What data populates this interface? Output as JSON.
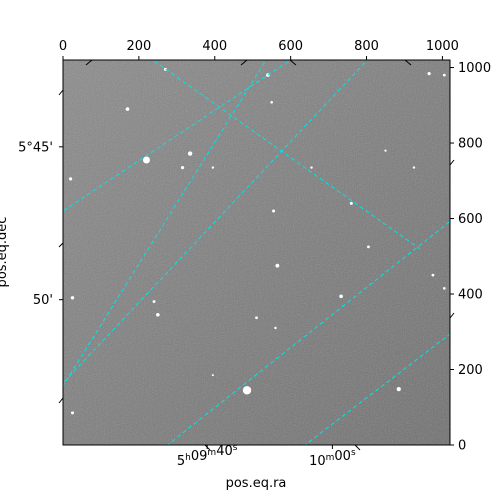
{
  "chart_data": {
    "type": "image",
    "description_free": true,
    "xlabel": "pos.eq.ra",
    "ylabel": "pos.eq.dec",
    "pixel_axes": {
      "x_range": [
        0,
        1020
      ],
      "y_range": [
        0,
        1020
      ],
      "x_ticks": [
        0,
        200,
        400,
        600,
        800,
        1000
      ],
      "y_ticks": [
        0,
        200,
        400,
        600,
        800,
        1000
      ],
      "x_tick_labels": [
        "0",
        "200",
        "400",
        "600",
        "800",
        "1000"
      ],
      "y_tick_labels": [
        "0",
        "200",
        "400",
        "600",
        "800",
        "1000"
      ]
    },
    "world_ticks": {
      "ra_labels": [
        {
          "h": "5",
          "m": "09",
          "s": "40",
          "pixel": [
            380,
            0
          ]
        },
        {
          "h": "",
          "m": "10",
          "s": "00",
          "pixel": [
            710,
            0
          ]
        }
      ],
      "dec_labels": [
        {
          "text": "5°45'",
          "pixel": [
            0,
            790
          ]
        },
        {
          "text": "50'",
          "pixel": [
            0,
            385
          ]
        }
      ]
    },
    "grid": true,
    "grid_color": "#00e5e5",
    "ra_grid_lines": [
      {
        "p1": [
          -60,
          580
        ],
        "p2": [
          660,
          1060
        ]
      },
      {
        "p1": [
          180,
          1060
        ],
        "p2": [
          940,
          520
        ]
      },
      {
        "p1": [
          -60,
          100
        ],
        "p2": [
          840,
          1060
        ]
      },
      {
        "p1": [
          200,
          -60
        ],
        "p2": [
          1080,
          640
        ]
      },
      {
        "p1": [
          -60,
          60
        ],
        "p2": [
          560,
          1060
        ]
      },
      {
        "p1": [
          560,
          -60
        ],
        "p2": [
          1080,
          340
        ]
      }
    ],
    "stars": [
      {
        "x": 270,
        "y": 995,
        "r": 1.5
      },
      {
        "x": 170,
        "y": 890,
        "r": 1.8
      },
      {
        "x": 220,
        "y": 755,
        "r": 3.5
      },
      {
        "x": 335,
        "y": 772,
        "r": 2.2
      },
      {
        "x": 315,
        "y": 735,
        "r": 1.6
      },
      {
        "x": 540,
        "y": 980,
        "r": 1.8
      },
      {
        "x": 550,
        "y": 908,
        "r": 1.3
      },
      {
        "x": 20,
        "y": 705,
        "r": 1.6
      },
      {
        "x": 395,
        "y": 735,
        "r": 1.2
      },
      {
        "x": 555,
        "y": 620,
        "r": 1.5
      },
      {
        "x": 760,
        "y": 640,
        "r": 1.5
      },
      {
        "x": 805,
        "y": 525,
        "r": 1.4
      },
      {
        "x": 565,
        "y": 475,
        "r": 1.9
      },
      {
        "x": 975,
        "y": 450,
        "r": 1.4
      },
      {
        "x": 1005,
        "y": 415,
        "r": 1.3
      },
      {
        "x": 733,
        "y": 394,
        "r": 1.8
      },
      {
        "x": 25,
        "y": 390,
        "r": 1.7
      },
      {
        "x": 240,
        "y": 380,
        "r": 1.4
      },
      {
        "x": 250,
        "y": 345,
        "r": 1.8
      },
      {
        "x": 510,
        "y": 337,
        "r": 1.4
      },
      {
        "x": 560,
        "y": 310,
        "r": 1.2
      },
      {
        "x": 485,
        "y": 145,
        "r": 4.2
      },
      {
        "x": 885,
        "y": 148,
        "r": 2.1
      },
      {
        "x": 25,
        "y": 85,
        "r": 1.5
      },
      {
        "x": 965,
        "y": 984,
        "r": 1.6
      },
      {
        "x": 1005,
        "y": 980,
        "r": 1.4
      },
      {
        "x": 925,
        "y": 735,
        "r": 1.2
      },
      {
        "x": 395,
        "y": 185,
        "r": 1.0
      },
      {
        "x": 655,
        "y": 735,
        "r": 1.2
      },
      {
        "x": 850,
        "y": 780,
        "r": 1.1
      }
    ]
  }
}
